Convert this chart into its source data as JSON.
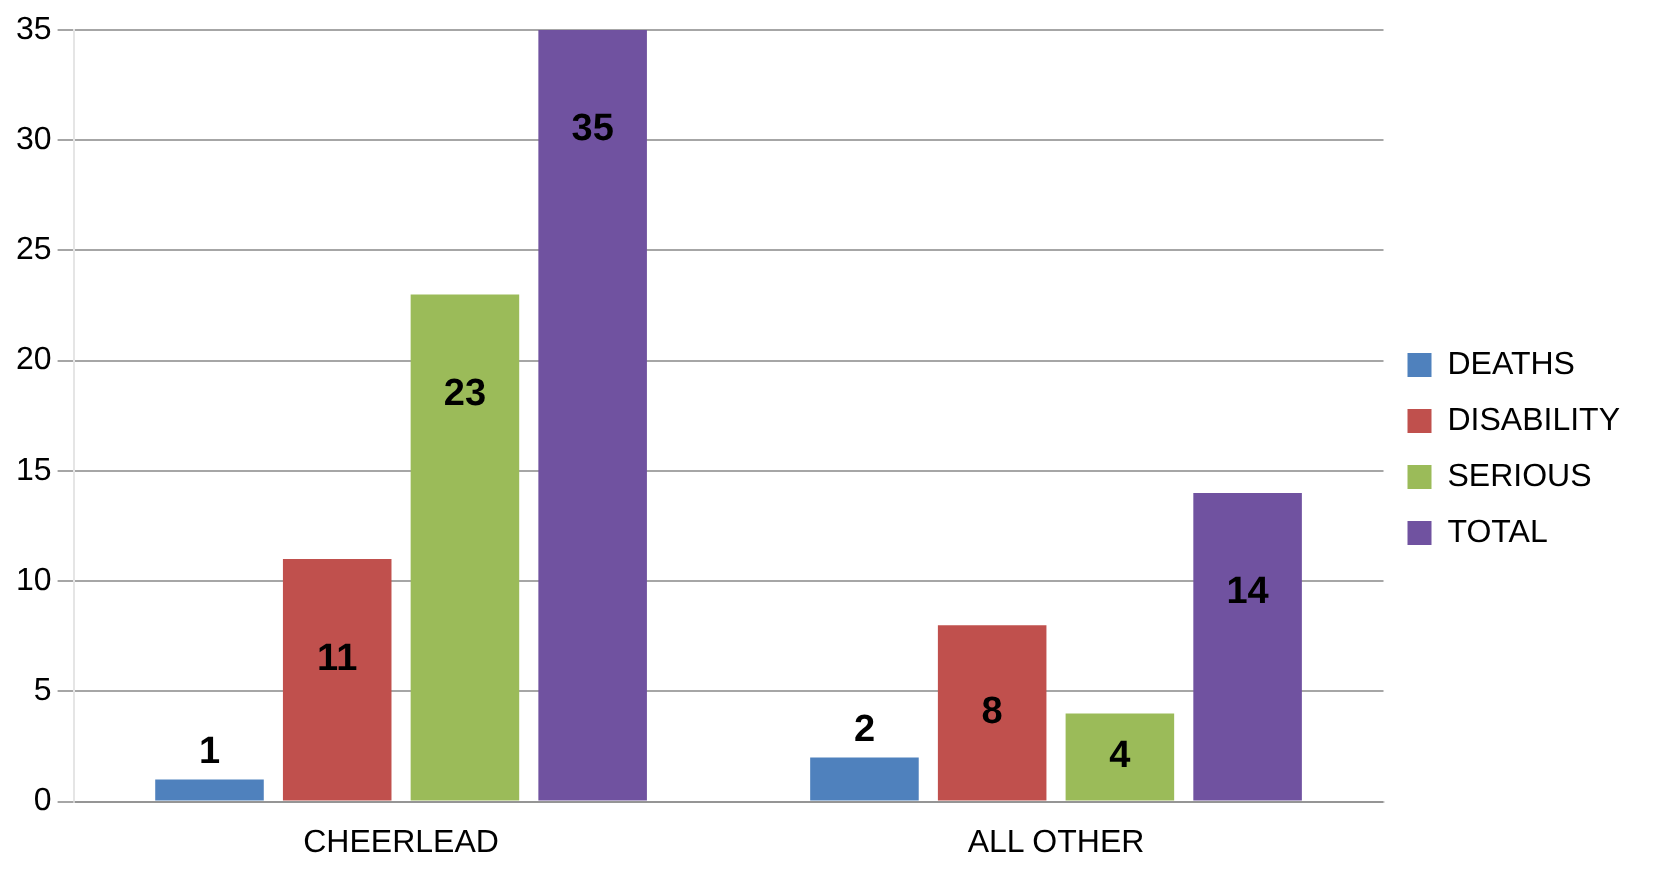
{
  "chart_data": {
    "type": "bar",
    "categories": [
      "CHEERLEAD",
      "ALL OTHER"
    ],
    "series": [
      {
        "name": "DEATHS",
        "color": "#4f81bd",
        "values": [
          1,
          2
        ]
      },
      {
        "name": "DISABILITY",
        "color": "#c0504d",
        "values": [
          11,
          8
        ]
      },
      {
        "name": "SERIOUS",
        "color": "#9bbb59",
        "values": [
          23,
          4
        ]
      },
      {
        "name": "TOTAL",
        "color": "#7052a0",
        "values": [
          35,
          14
        ]
      }
    ],
    "ylim": [
      0,
      35
    ],
    "yticks": [
      0,
      5,
      10,
      15,
      20,
      25,
      30,
      35
    ],
    "grid": "y",
    "legend": "right",
    "data_labels": true
  }
}
